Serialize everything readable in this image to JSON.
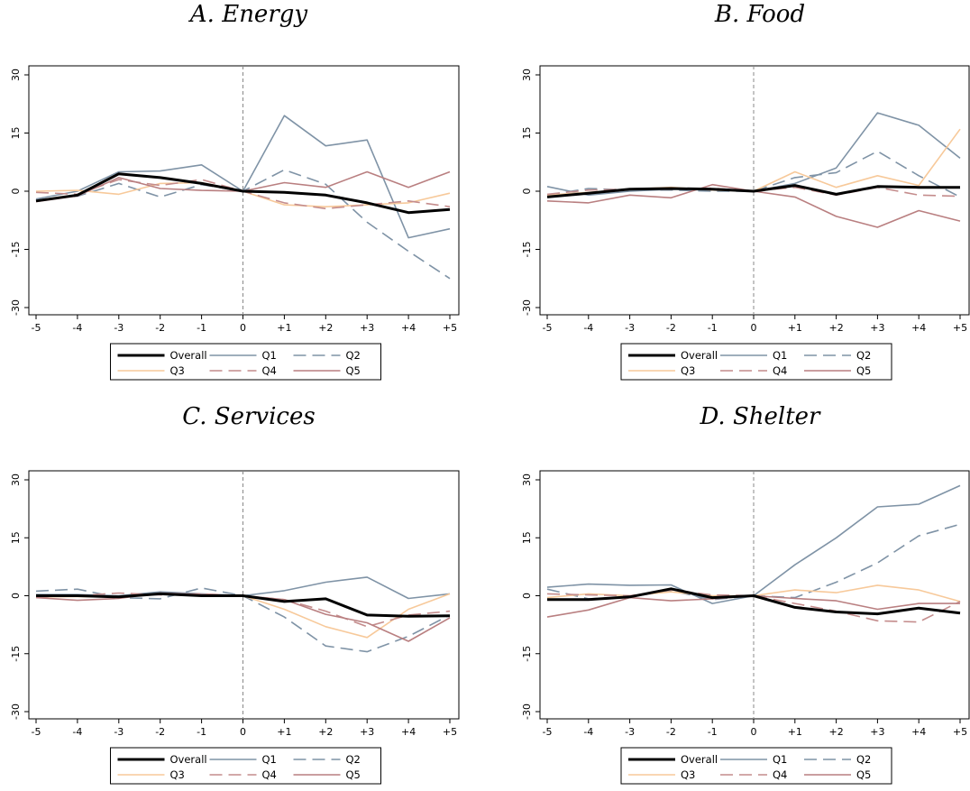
{
  "series_styles": {
    "Overall": {
      "color": "#000000",
      "width": 3,
      "dash": ""
    },
    "Q1": {
      "color": "#7f93a6",
      "width": 1.6,
      "dash": ""
    },
    "Q2": {
      "color": "#7f93a6",
      "width": 1.6,
      "dash": "14,7"
    },
    "Q3": {
      "color": "#f7c99a",
      "width": 1.6,
      "dash": ""
    },
    "Q4": {
      "color": "#c48c8c",
      "width": 1.6,
      "dash": "14,7"
    },
    "Q5": {
      "color": "#b97f80",
      "width": 1.6,
      "dash": ""
    }
  },
  "chart_data": [
    {
      "type": "line",
      "title": "A. Energy",
      "categories": [
        "-5",
        "-4",
        "-3",
        "-2",
        "-1",
        "0",
        "+1",
        "+2",
        "+3",
        "+4",
        "+5"
      ],
      "ylim": [
        -30,
        30
      ],
      "yticks": [
        "-30",
        "-15",
        "0",
        "15",
        "30"
      ],
      "event_line_at": "0",
      "series": [
        {
          "name": "Overall",
          "values": [
            -2.5,
            -1,
            4.5,
            3.5,
            2,
            0,
            -0.3,
            -1,
            -3,
            -5.5,
            -4.7
          ]
        },
        {
          "name": "Q1",
          "values": [
            -2,
            0,
            5,
            5.2,
            6.8,
            0,
            19.5,
            11.7,
            13.2,
            -12,
            -9.7
          ]
        },
        {
          "name": "Q2",
          "values": [
            -2.2,
            -1.3,
            2,
            -1.5,
            1.7,
            0,
            5.5,
            1.8,
            -8,
            -15.5,
            -22.5
          ]
        },
        {
          "name": "Q3",
          "values": [
            0,
            0.2,
            -0.8,
            2,
            2.2,
            0,
            -3.5,
            -4,
            -3.5,
            -3,
            -0.5
          ]
        },
        {
          "name": "Q4",
          "values": [
            -0.3,
            -0.8,
            3,
            1.5,
            3,
            0,
            -3,
            -4.5,
            -3.5,
            -2.5,
            -4
          ]
        },
        {
          "name": "Q5",
          "values": [
            -2.7,
            -1.2,
            3.5,
            0.7,
            0.2,
            0,
            2.2,
            1,
            5,
            1,
            5
          ]
        }
      ]
    },
    {
      "type": "line",
      "title": "B. Food",
      "categories": [
        "-5",
        "-4",
        "-3",
        "-2",
        "-1",
        "0",
        "+1",
        "+2",
        "+3",
        "+4",
        "+5"
      ],
      "ylim": [
        -30,
        30
      ],
      "yticks": [
        "-30",
        "-15",
        "0",
        "15",
        "30"
      ],
      "event_line_at": "0",
      "series": [
        {
          "name": "Overall",
          "values": [
            -1.5,
            -0.5,
            0.5,
            0.7,
            0.5,
            0,
            1.5,
            -0.8,
            1.2,
            1,
            1
          ]
        },
        {
          "name": "Q1",
          "values": [
            1.2,
            -1,
            0,
            0.5,
            0.3,
            0,
            2,
            6,
            20.2,
            17,
            8.5
          ]
        },
        {
          "name": "Q2",
          "values": [
            -1,
            0.7,
            0.3,
            0.3,
            0,
            0,
            3.5,
            4.8,
            10.3,
            4,
            -1.5
          ]
        },
        {
          "name": "Q3",
          "values": [
            -1,
            -0.3,
            0.5,
            1,
            0.3,
            0,
            5,
            1,
            4,
            1.5,
            16
          ]
        },
        {
          "name": "Q4",
          "values": [
            -0.8,
            0.3,
            0.5,
            0.5,
            0.8,
            0,
            1,
            -1,
            1,
            -1,
            -1.3
          ]
        },
        {
          "name": "Q5",
          "values": [
            -2.5,
            -3,
            -1,
            -1.7,
            1.7,
            0,
            -1.5,
            -6.5,
            -9.3,
            -5,
            -7.7
          ]
        }
      ]
    },
    {
      "type": "line",
      "title": "C. Services",
      "categories": [
        "-5",
        "-4",
        "-3",
        "-2",
        "-1",
        "0",
        "+1",
        "+2",
        "+3",
        "+4",
        "+5"
      ],
      "ylim": [
        -30,
        30
      ],
      "yticks": [
        "-30",
        "-15",
        "0",
        "15",
        "30"
      ],
      "event_line_at": "0",
      "series": [
        {
          "name": "Overall",
          "values": [
            0,
            0,
            -0.3,
            0.5,
            0,
            0,
            -1.5,
            -0.8,
            -5,
            -5.3,
            -5.2
          ]
        },
        {
          "name": "Q1",
          "values": [
            0.3,
            0.3,
            0,
            1,
            0.5,
            0,
            1.3,
            3.5,
            4.8,
            -0.7,
            0.5
          ]
        },
        {
          "name": "Q2",
          "values": [
            1.2,
            1.7,
            -0.5,
            -0.8,
            2,
            0,
            -5.5,
            -13,
            -14.5,
            -10.5,
            -5
          ]
        },
        {
          "name": "Q3",
          "values": [
            -0.3,
            -0.2,
            -0.3,
            0.5,
            0,
            0,
            -3.5,
            -8,
            -10.8,
            -3.5,
            0.5
          ]
        },
        {
          "name": "Q4",
          "values": [
            -0.3,
            0,
            0.7,
            0.2,
            0.5,
            0,
            -1,
            -4,
            -8,
            -5,
            -4
          ]
        },
        {
          "name": "Q5",
          "values": [
            -0.5,
            -1.2,
            -0.7,
            0.7,
            0.3,
            0,
            -1,
            -4.8,
            -7,
            -11.8,
            -5.7
          ]
        }
      ]
    },
    {
      "type": "line",
      "title": "D. Shelter",
      "categories": [
        "-5",
        "-4",
        "-3",
        "-2",
        "-1",
        "0",
        "+1",
        "+2",
        "+3",
        "+4",
        "+5"
      ],
      "ylim": [
        -30,
        30
      ],
      "yticks": [
        "-30",
        "-15",
        "0",
        "15",
        "30"
      ],
      "event_line_at": "0",
      "series": [
        {
          "name": "Overall",
          "values": [
            -1,
            -1,
            -0.3,
            1.8,
            -0.5,
            0,
            -3,
            -4.2,
            -4.7,
            -3.2,
            -4.5
          ]
        },
        {
          "name": "Q1",
          "values": [
            2.2,
            3,
            2.7,
            2.8,
            -2,
            0,
            8,
            15,
            23,
            23.7,
            28.5
          ]
        },
        {
          "name": "Q2",
          "values": [
            1.7,
            -0.8,
            -0.3,
            1.3,
            -1,
            0,
            -0.5,
            3.5,
            8.5,
            15.5,
            18.5
          ]
        },
        {
          "name": "Q3",
          "values": [
            -0.5,
            0.5,
            0,
            1,
            0,
            0,
            1.5,
            0.8,
            2.7,
            1.5,
            -1.5
          ]
        },
        {
          "name": "Q4",
          "values": [
            0.5,
            0.2,
            0,
            1.5,
            0.2,
            0,
            -2,
            -4,
            -6.5,
            -6.8,
            -1.5
          ]
        },
        {
          "name": "Q5",
          "values": [
            -5.5,
            -3.7,
            -0.5,
            -1.3,
            -0.8,
            0,
            -0.7,
            -1.3,
            -3.5,
            -2,
            -2
          ]
        }
      ]
    }
  ],
  "legend": {
    "entries": [
      "Overall",
      "Q1",
      "Q2",
      "Q3",
      "Q4",
      "Q5"
    ]
  }
}
